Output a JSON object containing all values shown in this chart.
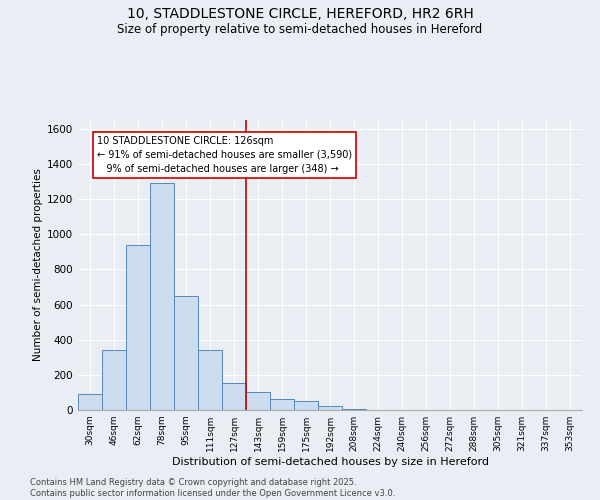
{
  "title_line1": "10, STADDLESTONE CIRCLE, HEREFORD, HR2 6RH",
  "title_line2": "Size of property relative to semi-detached houses in Hereford",
  "xlabel": "Distribution of semi-detached houses by size in Hereford",
  "ylabel": "Number of semi-detached properties",
  "bin_labels": [
    "30sqm",
    "46sqm",
    "62sqm",
    "78sqm",
    "95sqm",
    "111sqm",
    "127sqm",
    "143sqm",
    "159sqm",
    "175sqm",
    "192sqm",
    "208sqm",
    "224sqm",
    "240sqm",
    "256sqm",
    "272sqm",
    "288sqm",
    "305sqm",
    "321sqm",
    "337sqm",
    "353sqm"
  ],
  "bar_values": [
    90,
    340,
    940,
    1290,
    650,
    340,
    155,
    100,
    60,
    50,
    20,
    5,
    2,
    2,
    2,
    2,
    2,
    2,
    2,
    2,
    2
  ],
  "bar_color": "#ccddef",
  "bar_edge_color": "#5588bb",
  "annotation_line1": "10 STADDLESTONE CIRCLE: 126sqm",
  "annotation_line2": "← 91% of semi-detached houses are smaller (3,590)",
  "annotation_line3": "   9% of semi-detached houses are larger (348) →",
  "vline_x": 6.5,
  "vline_color": "#cc0000",
  "ann_box_edge": "#cc0000",
  "ylim": [
    0,
    1650
  ],
  "yticks": [
    0,
    200,
    400,
    600,
    800,
    1000,
    1200,
    1400,
    1600
  ],
  "background_color": "#e8eef4",
  "plot_bg_color": "#e8eef4",
  "grid_color": "#ffffff",
  "footer_line1": "Contains HM Land Registry data © Crown copyright and database right 2025.",
  "footer_line2": "Contains public sector information licensed under the Open Government Licence v3.0."
}
